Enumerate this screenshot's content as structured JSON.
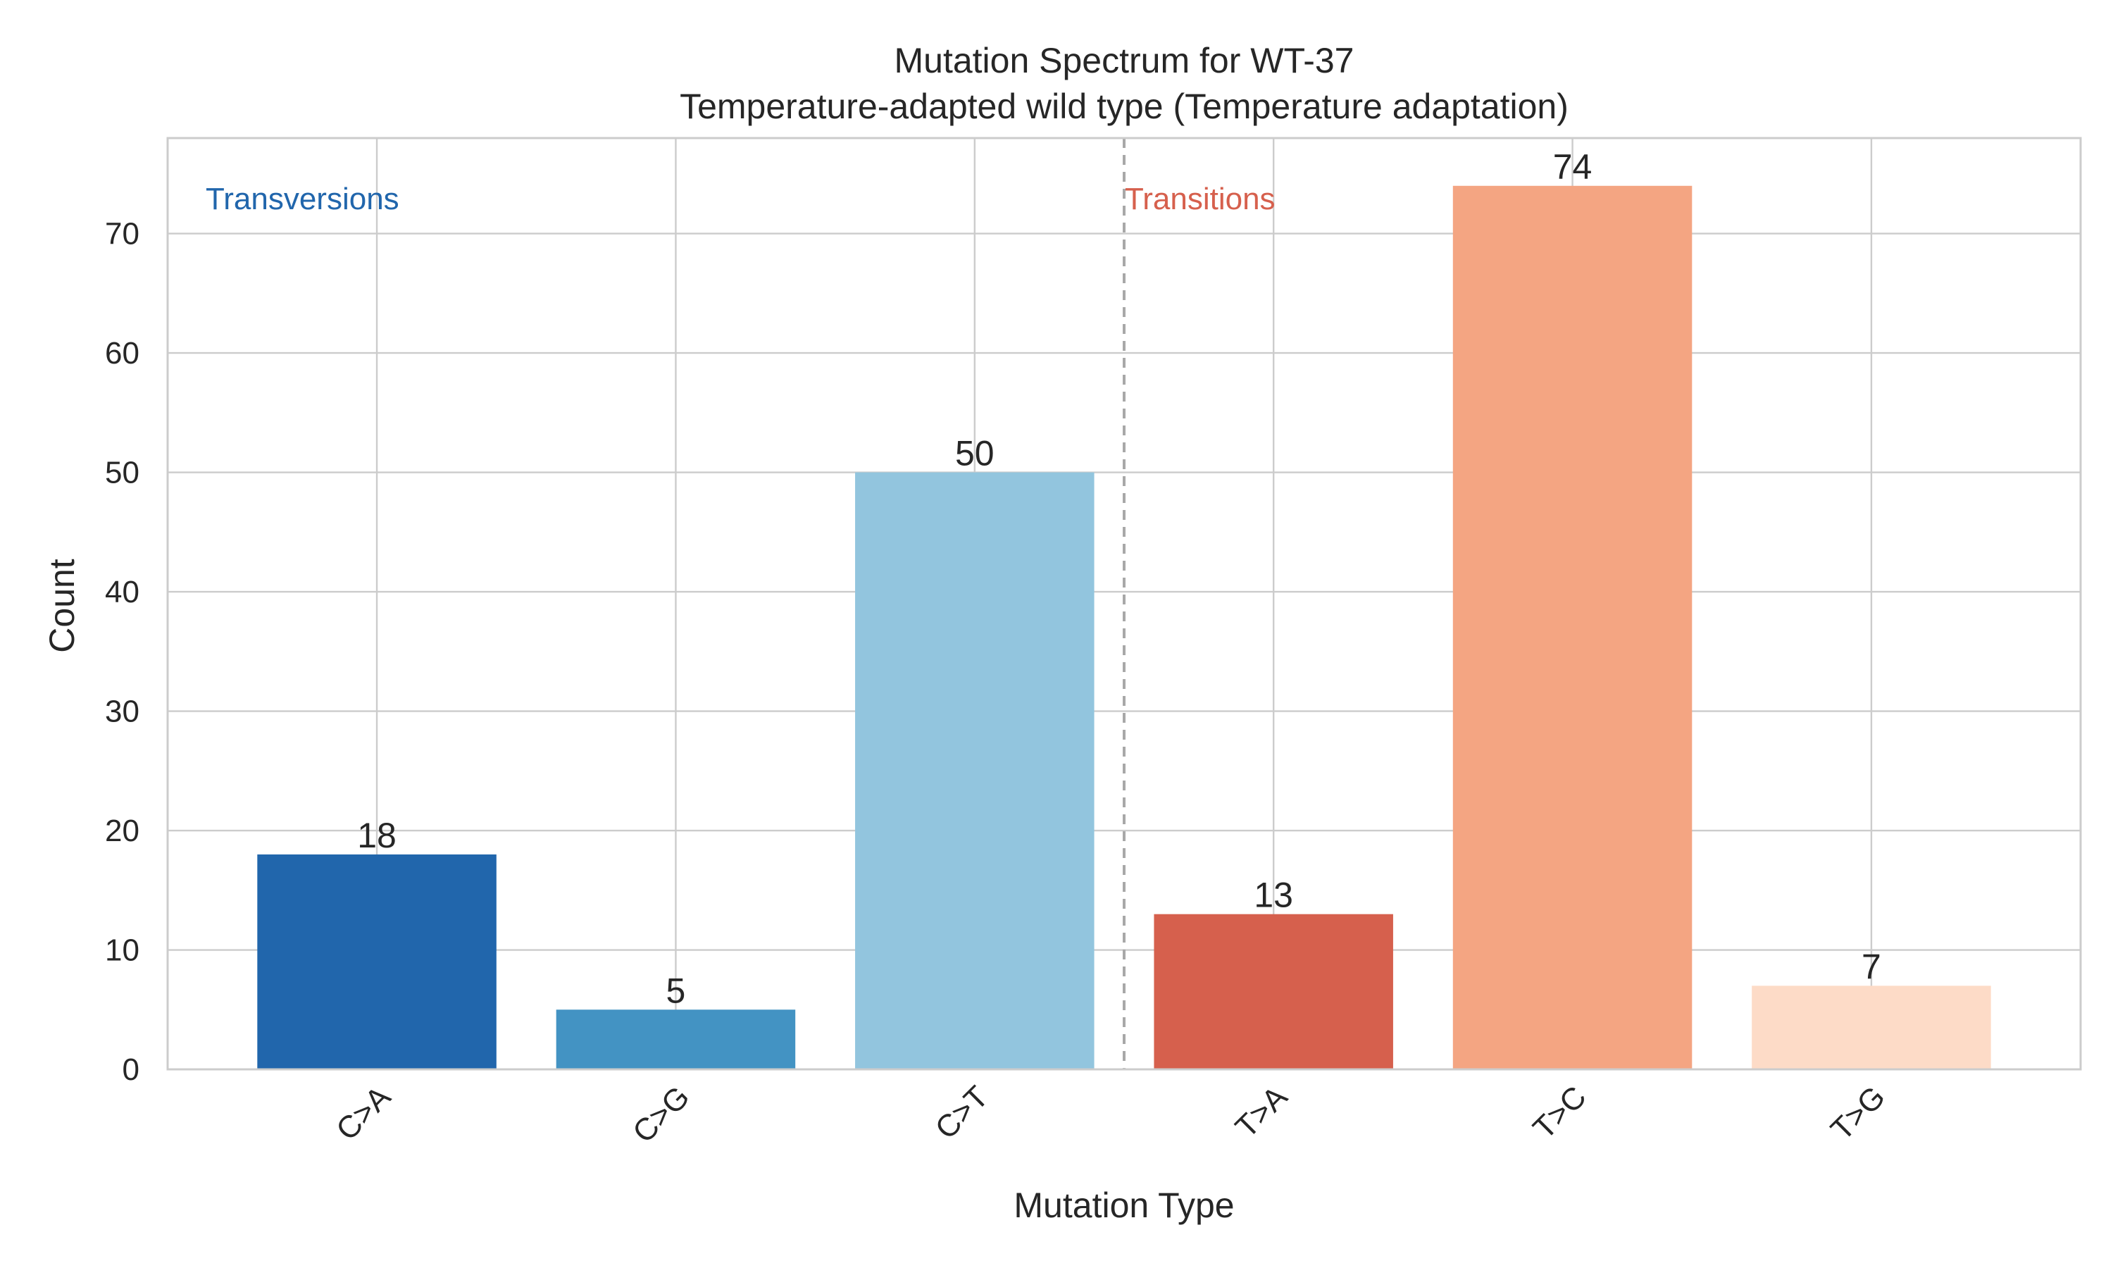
{
  "chart_data": {
    "type": "bar",
    "title": "Mutation Spectrum for WT-37",
    "subtitle": "Temperature-adapted wild type (Temperature adaptation)",
    "xlabel": "Mutation Type",
    "ylabel": "Count",
    "categories": [
      "C>A",
      "C>G",
      "C>T",
      "T>A",
      "T>C",
      "T>G"
    ],
    "values": [
      18,
      5,
      50,
      13,
      74,
      7
    ],
    "colors": [
      "#2166ac",
      "#4393c3",
      "#92c5de",
      "#d6604d",
      "#f4a582",
      "#fddbc7"
    ],
    "ylim": [
      0,
      78
    ],
    "yticks": [
      0,
      10,
      20,
      30,
      40,
      50,
      60,
      70
    ],
    "grid": true,
    "divider_between_index": 2.5,
    "group_labels": [
      {
        "text": "Transversions",
        "color": "#2166ac"
      },
      {
        "text": "Transitions",
        "color": "#d6604d"
      }
    ]
  }
}
